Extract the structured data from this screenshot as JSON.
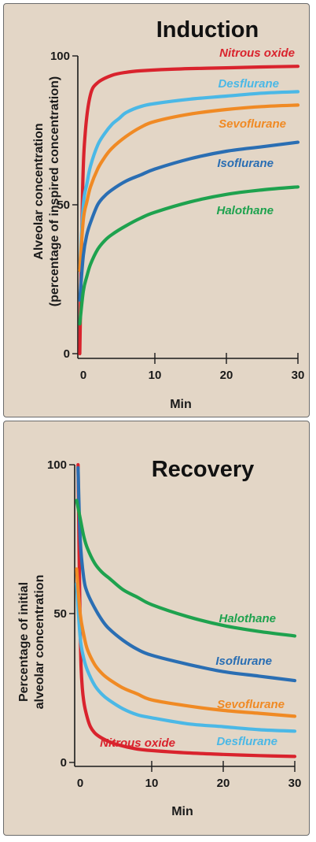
{
  "chart_data": [
    {
      "type": "line",
      "title": "Induction",
      "xlabel": "Min",
      "ylabel_lines": [
        "Alveolar concentration",
        "(percentage of inspired concentration)"
      ],
      "xlim": [
        0,
        30
      ],
      "ylim": [
        0,
        100
      ],
      "xticks": [
        0,
        10,
        20,
        30
      ],
      "yticks": [
        0,
        50,
        100
      ],
      "xtick_labels": [
        "0",
        "10",
        "20",
        "30"
      ],
      "ytick_labels": [
        "0",
        "50",
        "100"
      ],
      "grid": false,
      "legend": "inline-labels",
      "series": [
        {
          "name": "Nitrous oxide",
          "color": "#d9232d",
          "x": [
            -0.5,
            -0.1,
            0.3,
            1,
            2,
            4,
            6,
            8,
            12,
            16,
            20,
            25,
            30
          ],
          "y": [
            0,
            55,
            75,
            87,
            91,
            93.5,
            94.5,
            95,
            95.5,
            95.8,
            96,
            96.3,
            96.5
          ]
        },
        {
          "name": "Desflurane",
          "color": "#4bb8e6",
          "x": [
            -0.5,
            0,
            0.5,
            1,
            2,
            3,
            4,
            5,
            6,
            8,
            10,
            15,
            20,
            25,
            30
          ],
          "y": [
            28,
            50,
            57,
            63,
            70,
            74,
            77,
            79,
            81,
            83,
            84,
            85.5,
            86.5,
            87.5,
            88
          ]
        },
        {
          "name": "Sevoflurane",
          "color": "#f08a24",
          "x": [
            -0.5,
            0,
            0.5,
            1,
            2,
            3,
            4,
            6,
            8,
            10,
            15,
            20,
            25,
            30
          ],
          "y": [
            28,
            45,
            51,
            56,
            62,
            66,
            69,
            73,
            76,
            78,
            80.5,
            82,
            83,
            83.5
          ]
        },
        {
          "name": "Isoflurane",
          "color": "#2a6eb3",
          "x": [
            -0.5,
            0,
            0.5,
            1,
            2,
            3,
            4,
            6,
            8,
            10,
            15,
            20,
            25,
            30
          ],
          "y": [
            18,
            33,
            40,
            44,
            50,
            53,
            55,
            58,
            60,
            62,
            65.5,
            68,
            69.5,
            71
          ]
        },
        {
          "name": "Halothane",
          "color": "#1ea24e",
          "x": [
            -0.5,
            0,
            0.5,
            1,
            2,
            3,
            4,
            6,
            8,
            10,
            15,
            20,
            25,
            30
          ],
          "y": [
            10,
            21,
            26,
            30,
            35,
            38,
            40,
            43,
            45.5,
            47.5,
            51,
            53.5,
            55,
            56
          ]
        }
      ]
    },
    {
      "type": "line",
      "title": "Recovery",
      "xlabel": "Min",
      "ylabel_lines": [
        "Percentage of initial",
        "alveolar concentration"
      ],
      "xlim": [
        0,
        30
      ],
      "ylim": [
        0,
        100
      ],
      "xticks": [
        0,
        10,
        20,
        30
      ],
      "yticks": [
        0,
        50,
        100
      ],
      "xtick_labels": [
        "0",
        "10",
        "20",
        "30"
      ],
      "ytick_labels": [
        "0",
        "50",
        "100"
      ],
      "grid": false,
      "legend": "inline-labels",
      "series": [
        {
          "name": "Nitrous oxide",
          "color": "#d9232d",
          "x": [
            -0.3,
            0,
            0.3,
            1,
            2,
            4,
            6,
            8,
            10,
            15,
            20,
            25,
            30
          ],
          "y": [
            100,
            45,
            25,
            15,
            10,
            7,
            5.5,
            4.5,
            4,
            3.2,
            2.7,
            2.3,
            2
          ]
        },
        {
          "name": "Desflurane",
          "color": "#4bb8e6",
          "x": [
            -0.5,
            0,
            0.5,
            1,
            2,
            3,
            4,
            6,
            8,
            10,
            15,
            20,
            25,
            30
          ],
          "y": [
            60,
            42,
            35,
            31,
            26,
            23,
            21,
            18,
            16,
            15,
            13,
            12,
            11,
            10.5
          ]
        },
        {
          "name": "Sevoflurane",
          "color": "#f08a24",
          "x": [
            -0.5,
            0,
            0.5,
            1,
            2,
            3,
            4,
            6,
            8,
            10,
            15,
            20,
            25,
            30
          ],
          "y": [
            65,
            50,
            43,
            38,
            33,
            30,
            28,
            25,
            23,
            21,
            19,
            17.5,
            16.5,
            15.5
          ]
        },
        {
          "name": "Isoflurane",
          "color": "#2a6eb3",
          "x": [
            -0.3,
            0,
            0.5,
            1,
            2,
            3,
            4,
            6,
            8,
            10,
            15,
            20,
            25,
            30
          ],
          "y": [
            99,
            75,
            62,
            57,
            52,
            48,
            45,
            41,
            38,
            36,
            33,
            30.5,
            29,
            27.5
          ]
        },
        {
          "name": "Halothane",
          "color": "#1ea24e",
          "x": [
            -0.5,
            0,
            0.5,
            1,
            2,
            3,
            4,
            6,
            8,
            10,
            15,
            20,
            25,
            30
          ],
          "y": [
            88,
            82,
            76,
            72,
            67,
            64,
            62,
            58,
            55.5,
            53,
            49,
            46,
            44,
            42.5
          ]
        }
      ]
    }
  ]
}
